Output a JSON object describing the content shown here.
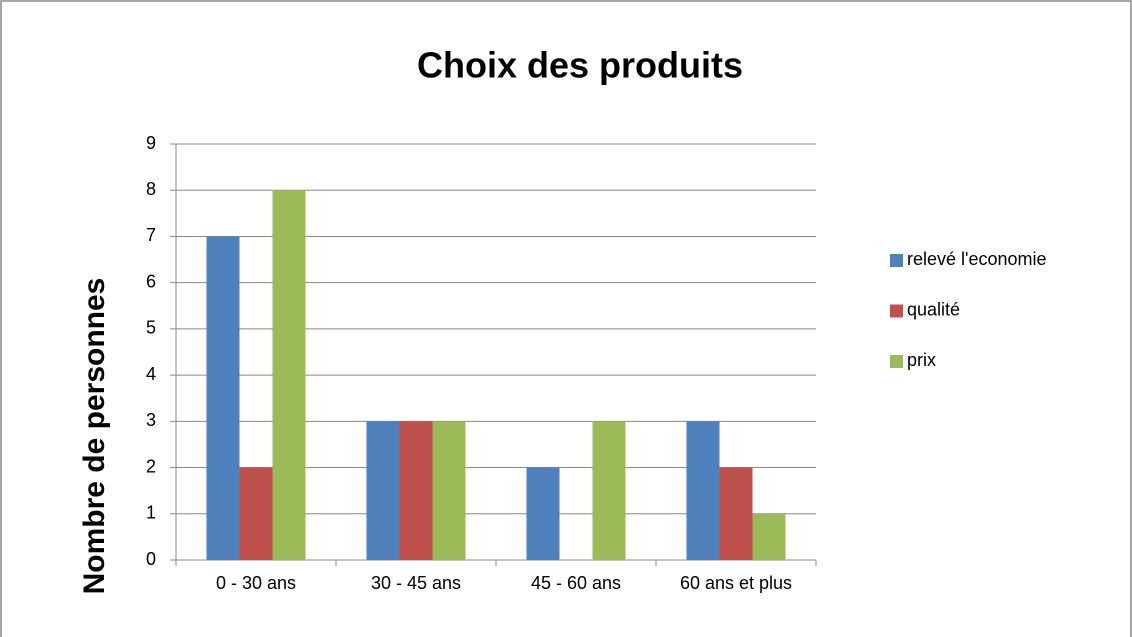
{
  "chart_data": {
    "type": "bar",
    "title": "Choix des produits",
    "y_label": "Nombre de personnes",
    "categories": [
      "0 - 30 ans",
      "30 - 45 ans",
      "45 - 60 ans",
      "60 ans et plus"
    ],
    "series": [
      {
        "name": "relevé l'economie",
        "color": "#4f81bd",
        "values": [
          7,
          3,
          2,
          3
        ]
      },
      {
        "name": "qualité",
        "color": "#c0504d",
        "values": [
          2,
          3,
          0,
          2
        ]
      },
      {
        "name": "prix",
        "color": "#9bbb59",
        "values": [
          8,
          3,
          3,
          1
        ]
      }
    ],
    "ylim": [
      0,
      9
    ],
    "yticks": [
      0,
      1,
      2,
      3,
      4,
      5,
      6,
      7,
      8,
      9
    ],
    "grid": true,
    "legend": "right"
  }
}
